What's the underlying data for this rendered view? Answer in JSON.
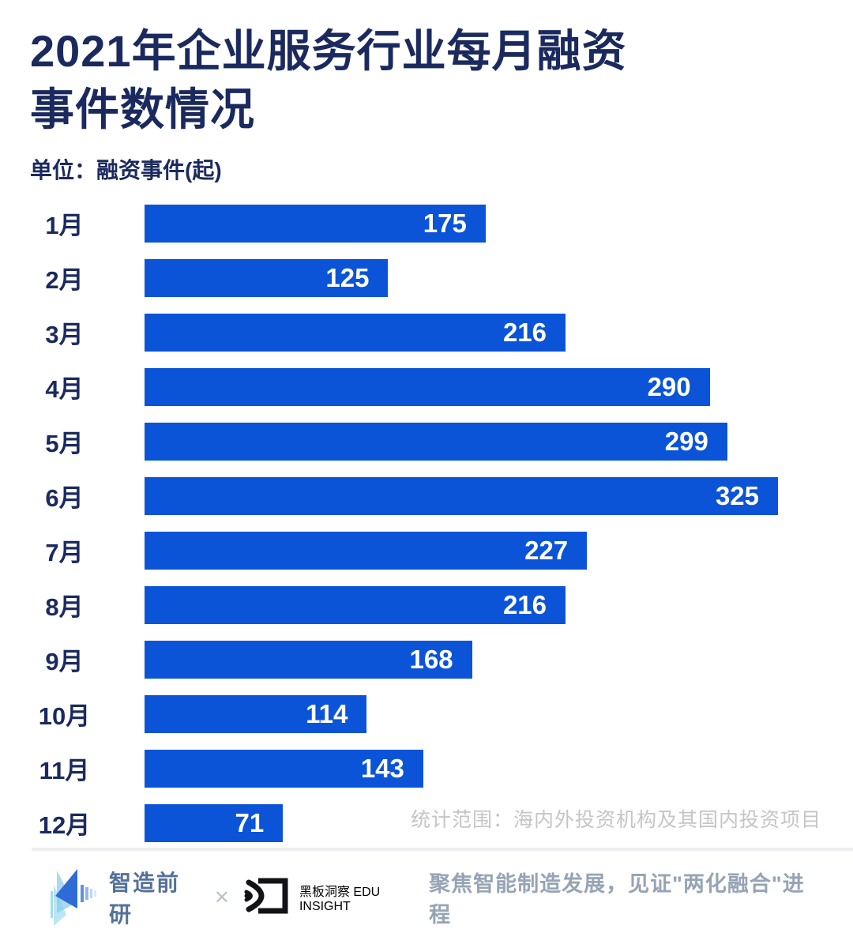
{
  "title": {
    "line1": "2021年企业服务行业每月融资",
    "line2": "事件数情况"
  },
  "unit_label": "单位：融资事件(起)",
  "footnote": "统计范围：海内外投资机构及其国内投资项目",
  "footer": {
    "brand_left_name": "智造前研",
    "cross_symbol": "✕",
    "brand_right_name": "黑板洞察",
    "brand_right_sub": "EDU INSIGHT",
    "slogan": "聚焦智能制造发展，见证\"两化融合\"进程"
  },
  "colors": {
    "bar": "#0b54d8",
    "title_text": "#1b2a5e",
    "value_text": "#ffffff",
    "footnote_text": "#c5c5c7",
    "slogan_text": "#96a4b5"
  },
  "icons": {
    "logo_left": "layered-triangles-logo",
    "logo_right": "eye-bracket-logo"
  },
  "chart_data": {
    "type": "bar",
    "orientation": "horizontal",
    "title": "2021年企业服务行业每月融资事件数情况",
    "unit": "融资事件(起)",
    "categories": [
      "1月",
      "2月",
      "3月",
      "4月",
      "5月",
      "6月",
      "7月",
      "8月",
      "9月",
      "10月",
      "11月",
      "12月"
    ],
    "values": [
      175,
      125,
      216,
      290,
      299,
      325,
      227,
      216,
      168,
      114,
      143,
      71
    ],
    "xlabel": "",
    "ylabel": "",
    "xlim": [
      0,
      325
    ],
    "grid": false,
    "legend": "none",
    "value_labels": "inside-end"
  }
}
